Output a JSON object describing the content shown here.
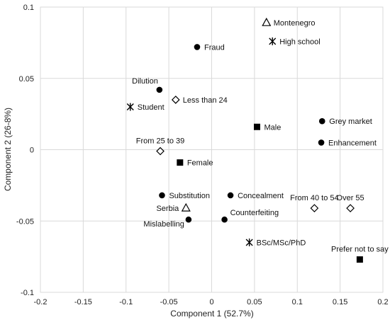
{
  "chart_data": {
    "type": "scatter",
    "title": "",
    "xlabel": "Component 1 (52.7%)",
    "ylabel": "Component 2 (26-8%)",
    "xlim": [
      -0.2,
      0.2
    ],
    "ylim": [
      -0.1,
      0.1
    ],
    "x_ticks": [
      -0.2,
      -0.15,
      -0.1,
      -0.05,
      0,
      0.05,
      0.1,
      0.15,
      0.2
    ],
    "y_ticks": [
      -0.1,
      -0.05,
      0,
      0.05,
      0.1
    ],
    "x_tick_labels": [
      "-0.2",
      "-0.15",
      "-0.1",
      "-0.05",
      "0",
      "0.05",
      "0.1",
      "0.15",
      "0.2"
    ],
    "y_tick_labels": [
      "-0.1",
      "-0.05",
      "0",
      "0.05",
      "0.1"
    ],
    "grid": true,
    "legend": "none",
    "points": [
      {
        "label": "Montenegro",
        "x": 0.064,
        "y": 0.089,
        "marker": "triangle",
        "label_pos": "right"
      },
      {
        "label": "High school",
        "x": 0.071,
        "y": 0.076,
        "marker": "asterisk",
        "label_pos": "right"
      },
      {
        "label": "Fraud",
        "x": -0.017,
        "y": 0.072,
        "marker": "circle",
        "label_pos": "right"
      },
      {
        "label": "Dilution",
        "x": -0.061,
        "y": 0.042,
        "marker": "circle",
        "label_pos": "upper-left"
      },
      {
        "label": "Less than 24",
        "x": -0.042,
        "y": 0.035,
        "marker": "diamond",
        "label_pos": "right"
      },
      {
        "label": "Student",
        "x": -0.095,
        "y": 0.03,
        "marker": "asterisk",
        "label_pos": "right"
      },
      {
        "label": "Grey market",
        "x": 0.129,
        "y": 0.02,
        "marker": "circle",
        "label_pos": "right"
      },
      {
        "label": "Male",
        "x": 0.053,
        "y": 0.016,
        "marker": "square",
        "label_pos": "right"
      },
      {
        "label": "Enhancement",
        "x": 0.128,
        "y": 0.005,
        "marker": "circle",
        "label_pos": "right"
      },
      {
        "label": "From 25 to 39",
        "x": -0.06,
        "y": -0.001,
        "marker": "diamond",
        "label_pos": "above"
      },
      {
        "label": "Female",
        "x": -0.037,
        "y": -0.009,
        "marker": "square",
        "label_pos": "right"
      },
      {
        "label": "Substitution",
        "x": -0.058,
        "y": -0.032,
        "marker": "circle",
        "label_pos": "right"
      },
      {
        "label": "Concealment",
        "x": 0.022,
        "y": -0.032,
        "marker": "circle",
        "label_pos": "right"
      },
      {
        "label": "From 40 to 54",
        "x": 0.12,
        "y": -0.041,
        "marker": "diamond",
        "label_pos": "above"
      },
      {
        "label": "Over 55",
        "x": 0.162,
        "y": -0.041,
        "marker": "diamond",
        "label_pos": "above"
      },
      {
        "label": "Serbia",
        "x": -0.03,
        "y": -0.041,
        "marker": "triangle",
        "label_pos": "left"
      },
      {
        "label": "Counterfeiting",
        "x": 0.015,
        "y": -0.049,
        "marker": "circle",
        "label_pos": "upper-right"
      },
      {
        "label": "Mislabelling",
        "x": -0.027,
        "y": -0.049,
        "marker": "circle",
        "label_pos": "lower-left"
      },
      {
        "label": "BSc/MSc/PhD",
        "x": 0.044,
        "y": -0.065,
        "marker": "asterisk",
        "label_pos": "right"
      },
      {
        "label": "Prefer not to say",
        "x": 0.173,
        "y": -0.077,
        "marker": "square",
        "label_pos": "above"
      }
    ]
  }
}
